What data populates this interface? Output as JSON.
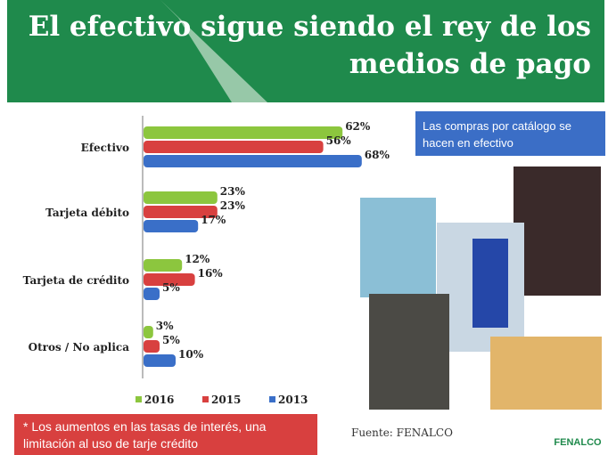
{
  "slide": {
    "title": [
      "El efectivo sigue siendo el rey de los",
      "medios de pago"
    ],
    "callout": [
      "Las compras por catálogo se",
      "hacen en efectivo"
    ],
    "note": [
      "* Los aumentos en las tasas de interés, una",
      "limitación al uso de tarje crédito"
    ],
    "source": "Fuente: FENALCO",
    "logo": "FENALCO"
  },
  "chart_data": {
    "type": "bar",
    "orientation": "horizontal",
    "categories": [
      "Efectivo",
      "Tarjeta débito",
      "Tarjeta de crédito",
      "Otros / No aplica"
    ],
    "series": [
      {
        "name": "2016",
        "color": "#8cc63e",
        "values": [
          62,
          23,
          12,
          3
        ],
        "value_labels": [
          "62%",
          "23%",
          "12%",
          "3%"
        ]
      },
      {
        "name": "2015",
        "color": "#d8403f",
        "values": [
          56,
          23,
          16,
          5
        ],
        "value_labels": [
          "56%",
          "23%",
          "16%",
          "5%"
        ]
      },
      {
        "name": "2013",
        "color": "#3a6fc8",
        "values": [
          68,
          17,
          5,
          10
        ],
        "value_labels": [
          "68%",
          "17%",
          "5%",
          "10%"
        ]
      }
    ]
  }
}
